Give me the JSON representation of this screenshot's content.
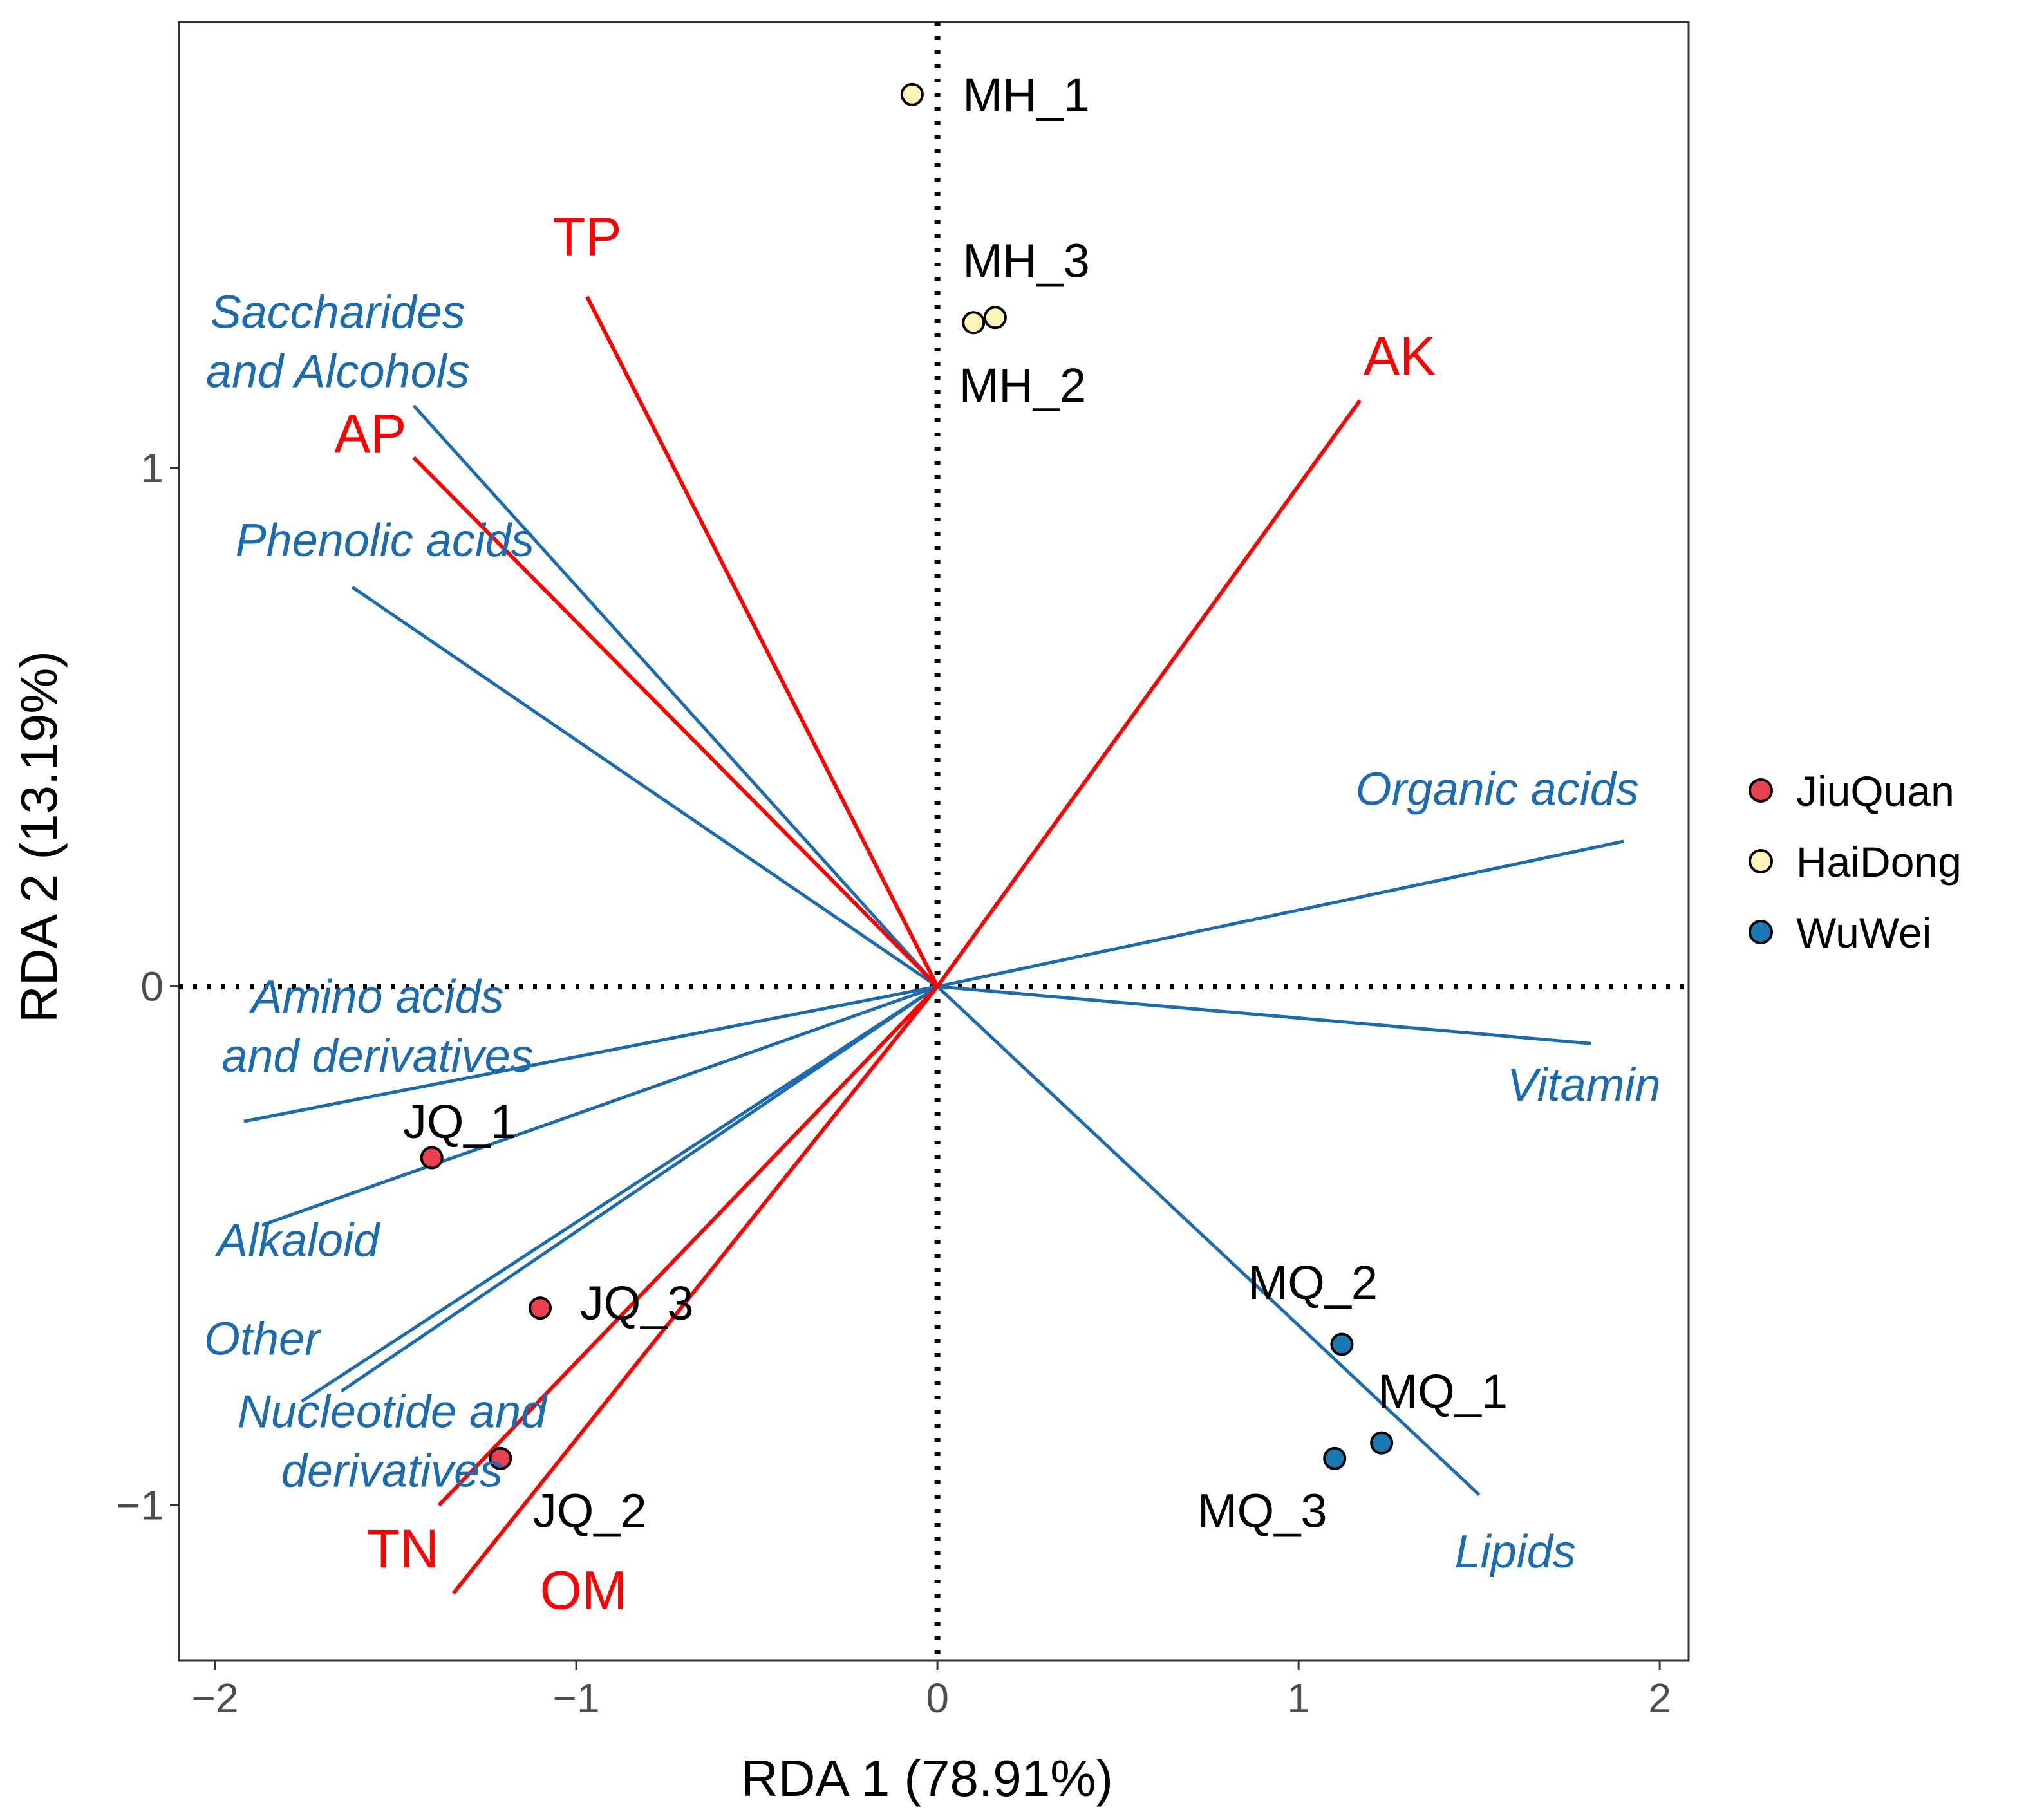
{
  "chart_data": {
    "type": "scatter",
    "subtype": "rda-biplot",
    "xlabel": "RDA 1 (78.91%)",
    "ylabel": "RDA 2 (13.19%)",
    "xlim": [
      -2.1,
      2.08
    ],
    "ylim": [
      -1.3,
      1.86
    ],
    "xticks": [
      {
        "value": -2,
        "label": "−2"
      },
      {
        "value": -1,
        "label": "−1"
      },
      {
        "value": 0,
        "label": "0"
      },
      {
        "value": 1,
        "label": "1"
      },
      {
        "value": 2,
        "label": "2"
      }
    ],
    "yticks": [
      {
        "value": -1,
        "label": "−1"
      },
      {
        "value": 0,
        "label": "0"
      },
      {
        "value": 1,
        "label": "1"
      }
    ],
    "reference_lines": {
      "x": 0,
      "y": 0,
      "style": "dotted"
    },
    "groups": [
      {
        "name": "JiuQuan",
        "color": "#e8424f"
      },
      {
        "name": "HaiDong",
        "color": "#fdf6b8"
      },
      {
        "name": "WuWei",
        "color": "#1a78b3"
      }
    ],
    "samples": [
      {
        "label": "MH_1",
        "group": "HaiDong",
        "x": -0.07,
        "y": 1.72,
        "label_at": [
          0.07,
          1.72
        ]
      },
      {
        "label": "MH_3",
        "group": "HaiDong",
        "x": 0.16,
        "y": 1.29,
        "label_at": [
          0.07,
          1.4
        ]
      },
      {
        "label": "MH_2",
        "group": "HaiDong",
        "x": 0.1,
        "y": 1.28,
        "label_at": [
          0.06,
          1.16
        ]
      },
      {
        "label": "JQ_1",
        "group": "JiuQuan",
        "x": -1.4,
        "y": -0.33,
        "label_at": [
          -1.48,
          -0.26
        ]
      },
      {
        "label": "JQ_3",
        "group": "JiuQuan",
        "x": -1.1,
        "y": -0.62,
        "label_at": [
          -0.99,
          -0.61
        ]
      },
      {
        "label": "JQ_2",
        "group": "JiuQuan",
        "x": -1.21,
        "y": -0.91,
        "label_at": [
          -1.12,
          -1.01
        ]
      },
      {
        "label": "MQ_2",
        "group": "WuWei",
        "x": 1.12,
        "y": -0.69,
        "label_at": [
          0.86,
          -0.57
        ]
      },
      {
        "label": "MQ_1",
        "group": "WuWei",
        "x": 1.23,
        "y": -0.88,
        "label_at": [
          1.22,
          -0.78
        ]
      },
      {
        "label": "MQ_3",
        "group": "WuWei",
        "x": 1.1,
        "y": -0.91,
        "label_at": [
          0.72,
          -1.01
        ]
      }
    ],
    "env_vectors": {
      "color": "#ff0000",
      "items": [
        {
          "label": "TP",
          "x": -0.97,
          "y": 1.33,
          "label_at": [
            -0.97,
            1.41
          ]
        },
        {
          "label": "AP",
          "x": -1.45,
          "y": 1.02,
          "label_at": [
            -1.57,
            1.03
          ]
        },
        {
          "label": "AK",
          "x": 1.17,
          "y": 1.13,
          "label_at": [
            1.28,
            1.18
          ]
        },
        {
          "label": "TN",
          "x": -1.38,
          "y": -1.0,
          "label_at": [
            -1.48,
            -1.12
          ]
        },
        {
          "label": "OM",
          "x": -1.34,
          "y": -1.17,
          "label_at": [
            -0.98,
            -1.2
          ]
        }
      ]
    },
    "metabolite_vectors": {
      "color": "#1a6bb0",
      "items": [
        {
          "label_lines": [
            "Saccharides",
            "and Alcohols"
          ],
          "x": -1.45,
          "y": 1.12,
          "label_at": [
            -1.66,
            1.27
          ]
        },
        {
          "label_lines": [
            "Phenolic acids"
          ],
          "x": -1.62,
          "y": 0.77,
          "label_at": [
            -1.53,
            0.83
          ]
        },
        {
          "label_lines": [
            "Organic acids"
          ],
          "x": 1.9,
          "y": 0.28,
          "label_at": [
            1.55,
            0.35
          ]
        },
        {
          "label_lines": [
            "Vitamin"
          ],
          "x": 1.81,
          "y": -0.11,
          "label_at": [
            1.79,
            -0.22
          ]
        },
        {
          "label_lines": [
            "Amino acids",
            "and derivatives"
          ],
          "x": -1.92,
          "y": -0.26,
          "label_at": [
            -1.55,
            -0.05
          ]
        },
        {
          "label_lines": [
            "Alkaloid"
          ],
          "x": -1.87,
          "y": -0.46,
          "label_at": [
            -1.77,
            -0.52
          ]
        },
        {
          "label_lines": [
            "Other"
          ],
          "x": -1.76,
          "y": -0.8,
          "label_at": [
            -1.87,
            -0.71
          ]
        },
        {
          "label_lines": [
            "Nucleotide and",
            "derivatives"
          ],
          "x": -1.65,
          "y": -0.78,
          "label_at": [
            -1.51,
            -0.85
          ]
        },
        {
          "label_lines": [
            "Lipids"
          ],
          "x": 1.5,
          "y": -0.98,
          "label_at": [
            1.6,
            -1.12
          ]
        }
      ]
    }
  }
}
